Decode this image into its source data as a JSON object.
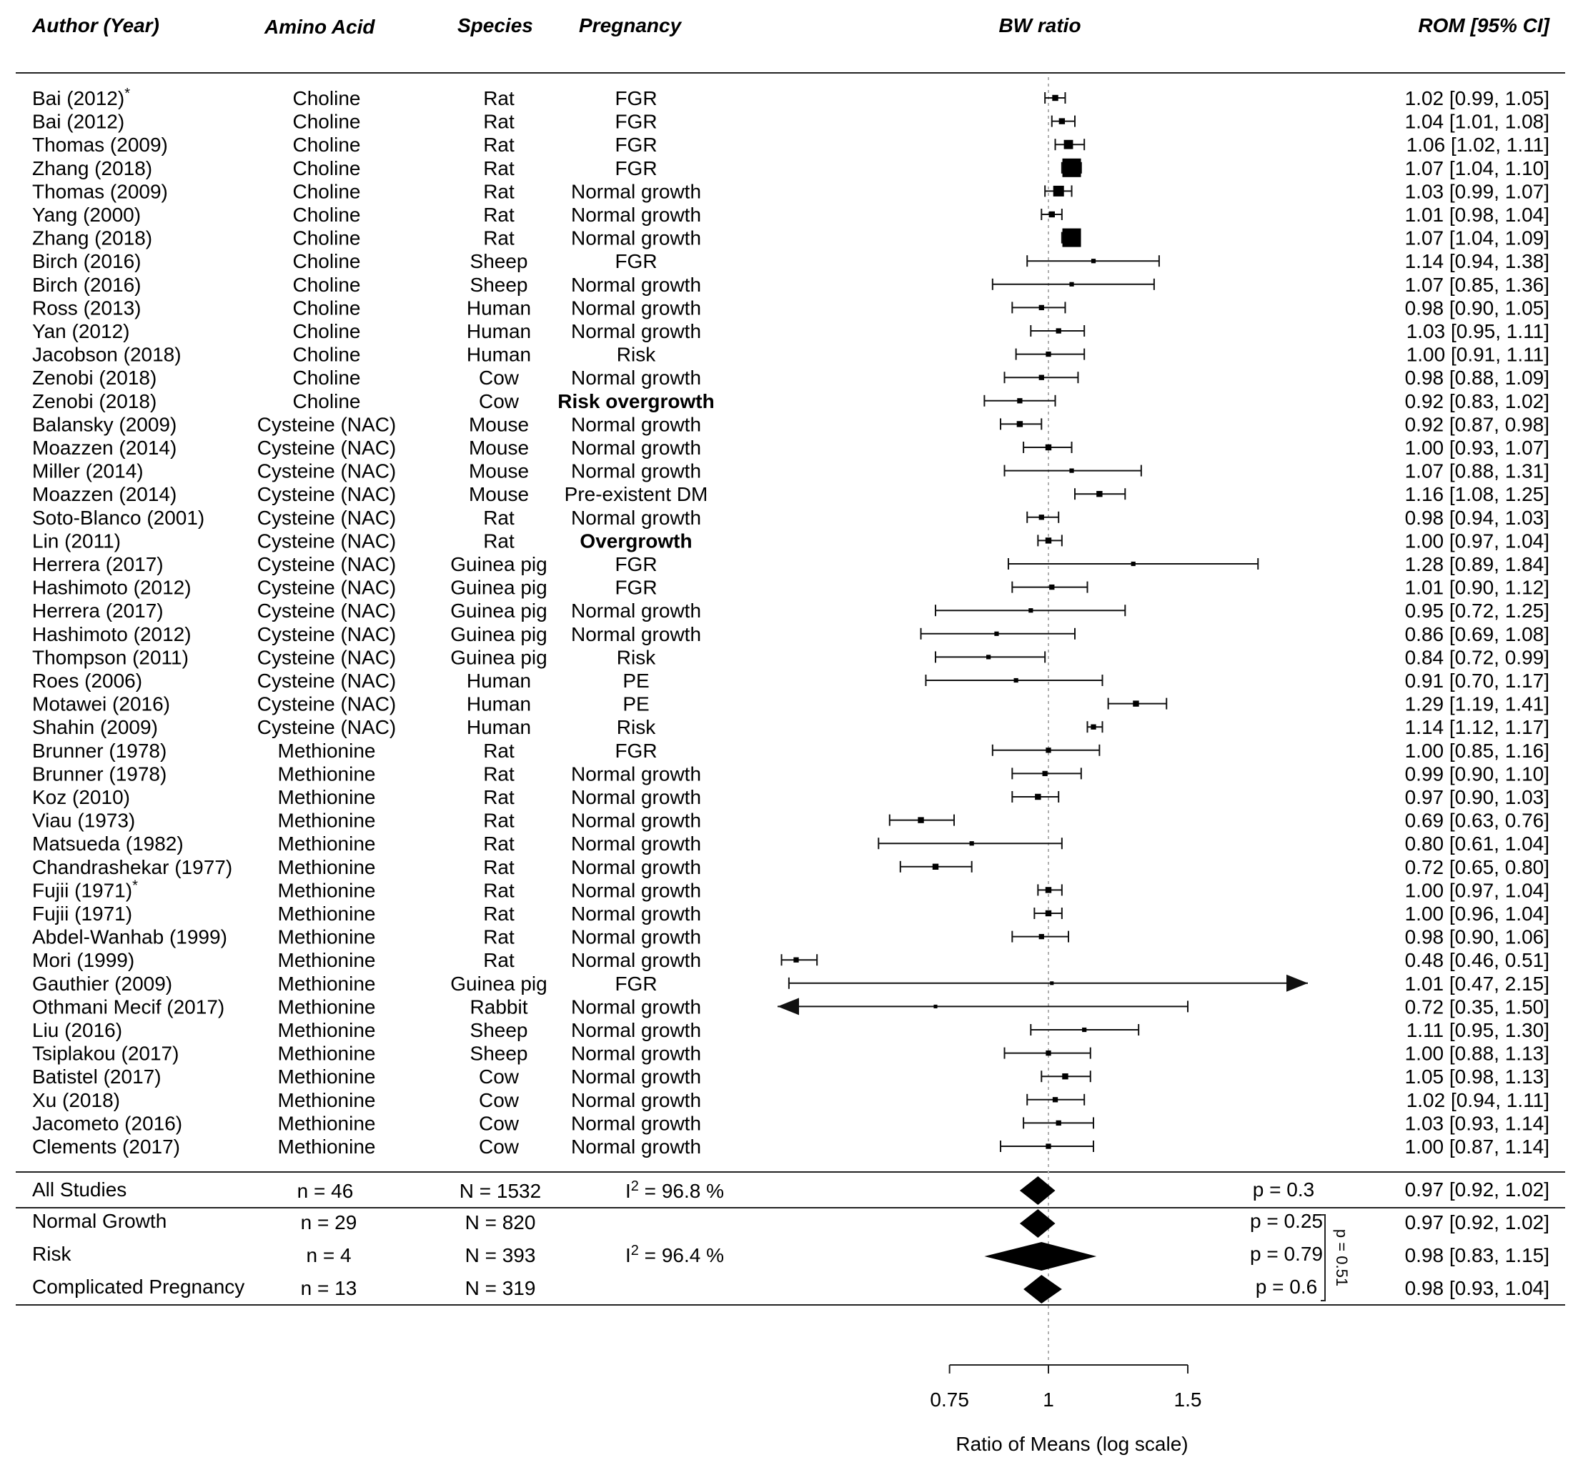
{
  "chart_data": {
    "type": "forest",
    "title": "BW ratio",
    "xlabel": "Ratio of Means (log scale)",
    "x_scale": "log",
    "xlim": [
      0.75,
      1.5
    ],
    "reference_line": 1,
    "ticks": [
      "0.75",
      "1",
      "1.5"
    ],
    "columns": {
      "author": "Author (Year)",
      "amino": "Amino Acid",
      "species": "Species",
      "pregnancy": "Pregnancy",
      "plot": "BW ratio",
      "rom": "ROM [95% CI]"
    },
    "studies": [
      {
        "author": "Bai (2012)",
        "marker": "*",
        "amino": "Choline",
        "species": "Rat",
        "pregnancy": "FGR",
        "est": 1.02,
        "lo": 0.99,
        "hi": 1.05,
        "rom": "1.02 [0.99, 1.05]",
        "weight": 2
      },
      {
        "author": "Bai  (2012)",
        "amino": "Choline",
        "species": "Rat",
        "pregnancy": "FGR",
        "est": 1.04,
        "lo": 1.01,
        "hi": 1.08,
        "rom": "1.04 [1.01, 1.08]",
        "weight": 2
      },
      {
        "author": "Thomas (2009)",
        "amino": "Choline",
        "species": "Rat",
        "pregnancy": "FGR",
        "est": 1.06,
        "lo": 1.02,
        "hi": 1.11,
        "rom": "1.06 [1.02, 1.11]",
        "weight": 4
      },
      {
        "author": "Zhang (2018)",
        "amino": "Choline",
        "species": "Rat",
        "pregnancy": "FGR",
        "est": 1.07,
        "lo": 1.04,
        "hi": 1.1,
        "rom": "1.07 [1.04, 1.10]",
        "weight": 10
      },
      {
        "author": "Thomas (2009)",
        "amino": "Choline",
        "species": "Rat",
        "pregnancy": "Normal growth",
        "est": 1.03,
        "lo": 0.99,
        "hi": 1.07,
        "rom": "1.03 [0.99, 1.07]",
        "weight": 5
      },
      {
        "author": "Yang (2000)",
        "amino": "Choline",
        "species": "Rat",
        "pregnancy": "Normal growth",
        "est": 1.01,
        "lo": 0.98,
        "hi": 1.04,
        "rom": "1.01 [0.98, 1.04]",
        "weight": 2
      },
      {
        "author": "Zhang (2018)",
        "amino": "Choline",
        "species": "Rat",
        "pregnancy": "Normal growth",
        "est": 1.07,
        "lo": 1.04,
        "hi": 1.09,
        "rom": "1.07 [1.04, 1.09]",
        "weight": 10
      },
      {
        "author": "Birch (2016)",
        "amino": "Choline",
        "species": "Sheep",
        "pregnancy": "FGR",
        "est": 1.14,
        "lo": 0.94,
        "hi": 1.38,
        "rom": "1.14 [0.94, 1.38]",
        "weight": 1
      },
      {
        "author": "Birch (2016)",
        "amino": "Choline",
        "species": "Sheep",
        "pregnancy": "Normal growth",
        "est": 1.07,
        "lo": 0.85,
        "hi": 1.36,
        "rom": "1.07 [0.85, 1.36]",
        "weight": 1
      },
      {
        "author": "Ross (2013)",
        "amino": "Choline",
        "species": "Human",
        "pregnancy": "Normal growth",
        "est": 0.98,
        "lo": 0.9,
        "hi": 1.05,
        "rom": "0.98 [0.90, 1.05]",
        "weight": 1.5
      },
      {
        "author": "Yan (2012)",
        "amino": "Choline",
        "species": "Human",
        "pregnancy": "Normal growth",
        "est": 1.03,
        "lo": 0.95,
        "hi": 1.11,
        "rom": "1.03 [0.95, 1.11]",
        "weight": 1.5
      },
      {
        "author": "Jacobson (2018)",
        "amino": "Choline",
        "species": "Human",
        "pregnancy": "Risk",
        "est": 1.0,
        "lo": 0.91,
        "hi": 1.11,
        "rom": "1.00 [0.91, 1.11]",
        "weight": 1.5
      },
      {
        "author": "Zenobi  (2018)",
        "amino": "Choline",
        "species": "Cow",
        "pregnancy": "Normal growth",
        "est": 0.98,
        "lo": 0.88,
        "hi": 1.09,
        "rom": "0.98 [0.88, 1.09]",
        "weight": 1.5
      },
      {
        "author": "Zenobi (2018)",
        "amino": "Choline",
        "species": "Cow",
        "pregnancy": "Risk overgrowth",
        "bold": true,
        "est": 0.92,
        "lo": 0.83,
        "hi": 1.02,
        "rom": "0.92 [0.83, 1.02]",
        "weight": 1.5
      },
      {
        "author": "Balansky (2009)",
        "amino": "Cysteine (NAC)",
        "species": "Mouse",
        "pregnancy": "Normal growth",
        "est": 0.92,
        "lo": 0.87,
        "hi": 0.98,
        "rom": "0.92 [0.87, 0.98]",
        "weight": 2
      },
      {
        "author": "Moazzen  (2014)",
        "amino": "Cysteine (NAC)",
        "species": "Mouse",
        "pregnancy": "Normal growth",
        "est": 1.0,
        "lo": 0.93,
        "hi": 1.07,
        "rom": "1.00 [0.93, 1.07]",
        "weight": 2
      },
      {
        "author": "Miller  (2014)",
        "amino": "Cysteine (NAC)",
        "species": "Mouse",
        "pregnancy": "Normal growth",
        "est": 1.07,
        "lo": 0.88,
        "hi": 1.31,
        "rom": "1.07 [0.88, 1.31]",
        "weight": 1
      },
      {
        "author": "Moazzen (2014)",
        "amino": "Cysteine (NAC)",
        "species": "Mouse",
        "pregnancy": "Pre-existent DM",
        "est": 1.16,
        "lo": 1.08,
        "hi": 1.25,
        "rom": "1.16 [1.08, 1.25]",
        "weight": 2
      },
      {
        "author": "Soto-Blanco (2001)",
        "amino": "Cysteine (NAC)",
        "species": "Rat",
        "pregnancy": "Normal growth",
        "est": 0.98,
        "lo": 0.94,
        "hi": 1.03,
        "rom": "0.98 [0.94, 1.03]",
        "weight": 1.5
      },
      {
        "author": "Lin (2011)",
        "amino": "Cysteine (NAC)",
        "species": "Rat",
        "pregnancy": "Overgrowth",
        "bold": true,
        "est": 1.0,
        "lo": 0.97,
        "hi": 1.04,
        "rom": "1.00 [0.97, 1.04]",
        "weight": 2
      },
      {
        "author": "Herrera  (2017)",
        "amino": "Cysteine (NAC)",
        "species": "Guinea pig",
        "pregnancy": "FGR",
        "est": 1.28,
        "lo": 0.89,
        "hi": 1.84,
        "rom": "1.28 [0.89, 1.84]",
        "weight": 1
      },
      {
        "author": "Hashimoto (2012)",
        "amino": "Cysteine (NAC)",
        "species": "Guinea pig",
        "pregnancy": "FGR",
        "est": 1.01,
        "lo": 0.9,
        "hi": 1.12,
        "rom": "1.01 [0.90, 1.12]",
        "weight": 1.5
      },
      {
        "author": "Herrera (2017)",
        "amino": "Cysteine (NAC)",
        "species": "Guinea pig",
        "pregnancy": "Normal growth",
        "est": 0.95,
        "lo": 0.72,
        "hi": 1.25,
        "rom": "0.95 [0.72, 1.25]",
        "weight": 1
      },
      {
        "author": "Hashimoto  (2012)",
        "amino": "Cysteine (NAC)",
        "species": "Guinea pig",
        "pregnancy": "Normal growth",
        "est": 0.86,
        "lo": 0.69,
        "hi": 1.08,
        "rom": "0.86 [0.69, 1.08]",
        "weight": 1
      },
      {
        "author": "Thompson (2011)",
        "amino": "Cysteine (NAC)",
        "species": "Guinea pig",
        "pregnancy": "Risk",
        "est": 0.84,
        "lo": 0.72,
        "hi": 0.99,
        "rom": "0.84 [0.72, 0.99]",
        "weight": 1
      },
      {
        "author": "Roes (2006)",
        "amino": "Cysteine (NAC)",
        "species": "Human",
        "pregnancy": "PE",
        "est": 0.91,
        "lo": 0.7,
        "hi": 1.17,
        "rom": "0.91 [0.70, 1.17]",
        "weight": 1
      },
      {
        "author": "Motawei (2016)",
        "amino": "Cysteine (NAC)",
        "species": "Human",
        "pregnancy": "PE",
        "est": 1.29,
        "lo": 1.19,
        "hi": 1.41,
        "rom": "1.29 [1.19, 1.41]",
        "weight": 2
      },
      {
        "author": "Shahin (2009)",
        "amino": "Cysteine (NAC)",
        "species": "Human",
        "pregnancy": "Risk",
        "est": 1.14,
        "lo": 1.12,
        "hi": 1.17,
        "rom": "1.14 [1.12, 1.17]",
        "weight": 1.5
      },
      {
        "author": "Brunner (1978)",
        "amino": "Methionine",
        "species": "Rat",
        "pregnancy": "FGR",
        "est": 1.0,
        "lo": 0.85,
        "hi": 1.16,
        "rom": "1.00 [0.85, 1.16]",
        "weight": 1.5
      },
      {
        "author": "Brunner  (1978)",
        "amino": "Methionine",
        "species": "Rat",
        "pregnancy": "Normal growth",
        "est": 0.99,
        "lo": 0.9,
        "hi": 1.1,
        "rom": "0.99 [0.90, 1.10]",
        "weight": 1.5
      },
      {
        "author": "Koz (2010)",
        "amino": "Methionine",
        "species": "Rat",
        "pregnancy": "Normal growth",
        "est": 0.97,
        "lo": 0.9,
        "hi": 1.03,
        "rom": "0.97 [0.90, 1.03]",
        "weight": 2
      },
      {
        "author": "Viau (1973)",
        "amino": "Methionine",
        "species": "Rat",
        "pregnancy": "Normal growth",
        "est": 0.69,
        "lo": 0.63,
        "hi": 0.76,
        "rom": "0.69 [0.63, 0.76]",
        "weight": 2
      },
      {
        "author": "Matsueda (1982)",
        "amino": "Methionine",
        "species": "Rat",
        "pregnancy": "Normal growth",
        "est": 0.8,
        "lo": 0.61,
        "hi": 1.04,
        "rom": "0.80 [0.61, 1.04]",
        "weight": 1
      },
      {
        "author": "Chandrashekar (1977)",
        "amino": "Methionine",
        "species": "Rat",
        "pregnancy": "Normal growth",
        "est": 0.72,
        "lo": 0.65,
        "hi": 0.8,
        "rom": "0.72 [0.65, 0.80]",
        "weight": 2
      },
      {
        "author": "Fujii (1971)",
        "marker": "*",
        "amino": "Methionine",
        "species": "Rat",
        "pregnancy": "Normal growth",
        "est": 1.0,
        "lo": 0.97,
        "hi": 1.04,
        "rom": "1.00 [0.97, 1.04]",
        "weight": 2
      },
      {
        "author": "Fujii  (1971)",
        "amino": "Methionine",
        "species": "Rat",
        "pregnancy": "Normal growth",
        "est": 1.0,
        "lo": 0.96,
        "hi": 1.04,
        "rom": "1.00 [0.96, 1.04]",
        "weight": 2
      },
      {
        "author": "Abdel-Wanhab (1999)",
        "amino": "Methionine",
        "species": "Rat",
        "pregnancy": "Normal growth",
        "est": 0.98,
        "lo": 0.9,
        "hi": 1.06,
        "rom": "0.98 [0.90, 1.06]",
        "weight": 1.5
      },
      {
        "author": "Mori (1999)",
        "amino": "Methionine",
        "species": "Rat",
        "pregnancy": "Normal growth",
        "est": 0.48,
        "lo": 0.46,
        "hi": 0.51,
        "rom": "0.48 [0.46, 0.51]",
        "weight": 1.5
      },
      {
        "author": "Gauthier (2009)",
        "amino": "Methionine",
        "species": "Guinea pig",
        "pregnancy": "FGR",
        "est": 1.01,
        "lo": 0.47,
        "hi": 2.15,
        "rom": "1.01 [0.47, 2.15]",
        "weight": 0.5
      },
      {
        "author": "Othmani Mecif (2017)",
        "amino": "Methionine",
        "species": "Rabbit",
        "pregnancy": "Normal growth",
        "est": 0.72,
        "lo": 0.35,
        "hi": 1.5,
        "rom": "0.72 [0.35, 1.50]",
        "weight": 0.5
      },
      {
        "author": "Liu (2016)",
        "amino": "Methionine",
        "species": "Sheep",
        "pregnancy": "Normal growth",
        "est": 1.11,
        "lo": 0.95,
        "hi": 1.3,
        "rom": "1.11 [0.95, 1.30]",
        "weight": 1
      },
      {
        "author": "Tsiplakou (2017)",
        "amino": "Methionine",
        "species": "Sheep",
        "pregnancy": "Normal growth",
        "est": 1.0,
        "lo": 0.88,
        "hi": 1.13,
        "rom": "1.00 [0.88, 1.13]",
        "weight": 1.5
      },
      {
        "author": "Batistel (2017)",
        "amino": "Methionine",
        "species": "Cow",
        "pregnancy": "Normal growth",
        "est": 1.05,
        "lo": 0.98,
        "hi": 1.13,
        "rom": "1.05 [0.98, 1.13]",
        "weight": 2
      },
      {
        "author": "Xu (2018)",
        "amino": "Methionine",
        "species": "Cow",
        "pregnancy": "Normal growth",
        "est": 1.02,
        "lo": 0.94,
        "hi": 1.11,
        "rom": "1.02 [0.94, 1.11]",
        "weight": 1.5
      },
      {
        "author": "Jacometo (2016)",
        "amino": "Methionine",
        "species": "Cow",
        "pregnancy": "Normal growth",
        "est": 1.03,
        "lo": 0.93,
        "hi": 1.14,
        "rom": "1.03 [0.93, 1.14]",
        "weight": 1.5
      },
      {
        "author": "Clements (2017)",
        "amino": "Methionine",
        "species": "Cow",
        "pregnancy": "Normal growth",
        "est": 1.0,
        "lo": 0.87,
        "hi": 1.14,
        "rom": "1.00 [0.87, 1.14]",
        "weight": 1.5
      }
    ],
    "overall": {
      "label": "All Studies",
      "n": "n = 46",
      "N": "N = 1532",
      "i2_pre": "I",
      "i2_sup": "2",
      "i2_post": " = 96.8 %",
      "p": "p = 0.3",
      "est": 0.97,
      "lo": 0.92,
      "hi": 1.02,
      "rom": "0.97 [0.92, 1.02]"
    },
    "subgroups": [
      {
        "label": "Normal Growth",
        "n": "n = 29",
        "N": "N = 820",
        "p": "p = 0.25",
        "est": 0.97,
        "lo": 0.92,
        "hi": 1.02,
        "rom": "0.97 [0.92, 1.02]"
      },
      {
        "label": "Risk",
        "n": "n = 4",
        "N": "N = 393",
        "p": "p = 0.79",
        "est": 0.98,
        "lo": 0.83,
        "hi": 1.15,
        "rom": "0.98 [0.83, 1.15]"
      },
      {
        "label": "Complicated Pregnancy",
        "n": "n = 13",
        "N": "N = 319",
        "p": "p = 0.6",
        "est": 0.98,
        "lo": 0.93,
        "hi": 1.04,
        "rom": "0.98 [0.93, 1.04]"
      }
    ],
    "subgroup_i2": {
      "pre": "I",
      "sup": "2",
      "post": " = 96.4 %"
    },
    "subgroup_test": "p = 0.51"
  }
}
